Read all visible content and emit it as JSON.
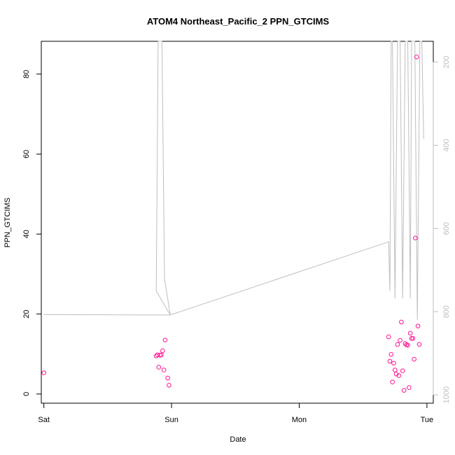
{
  "chart_data": {
    "type": "scatter",
    "title": "ATOM4 Northeast_Pacific_2 PPN_GTCIMS",
    "xlabel": "Date",
    "ylabel": "PPN_GTCIMS",
    "x_ticks": [
      "Sat",
      "Sun",
      "Mon",
      "Tue"
    ],
    "xlim": [
      -0.02,
      3.05
    ],
    "ylim": [
      -2.3,
      88.2
    ],
    "y_ticks": [
      0,
      20,
      40,
      60,
      80
    ],
    "right_axis": {
      "ylim": [
        1020,
        150
      ],
      "ticks": [
        200,
        400,
        600,
        800,
        1000
      ],
      "color": "#bebebe"
    },
    "grid": false,
    "series": [
      {
        "type": "line",
        "axis": "right",
        "color": "#bebebe",
        "x": [
          0.0,
          0.99,
          0.88,
          0.895,
          0.91,
          0.925,
          0.945,
          0.99,
          2.7,
          2.71,
          2.72,
          2.73,
          2.75,
          2.77,
          2.79,
          2.81,
          2.83,
          2.85,
          2.87,
          2.88,
          2.89,
          2.905,
          2.925,
          2.945,
          2.96,
          2.975
        ],
        "y": [
          807,
          808,
          750,
          150,
          150,
          150,
          720,
          808,
          632,
          750,
          150,
          150,
          768,
          150,
          150,
          768,
          150,
          150,
          768,
          150,
          150,
          150,
          820,
          150,
          150,
          385
        ]
      },
      {
        "type": "scatter",
        "axis": "left",
        "color": "#ff1493",
        "x": [
          0.0,
          0.88,
          0.89,
          0.9,
          0.91,
          0.92,
          0.93,
          0.94,
          0.95,
          0.97,
          0.98,
          2.7,
          2.71,
          2.72,
          2.73,
          2.74,
          2.75,
          2.76,
          2.77,
          2.78,
          2.79,
          2.8,
          2.81,
          2.82,
          2.83,
          2.84,
          2.85,
          2.86,
          2.87,
          2.88,
          2.89,
          2.9,
          2.91,
          2.92,
          2.93,
          2.94
        ],
        "y": [
          5.3,
          9.5,
          9.8,
          6.7,
          9.7,
          9.8,
          10.8,
          6.0,
          13.5,
          4.0,
          2.2,
          14.3,
          8.2,
          9.9,
          3.0,
          7.7,
          6.0,
          5.0,
          12.4,
          4.6,
          13.4,
          18.0,
          5.8,
          0.9,
          12.6,
          12.3,
          12.2,
          1.6,
          15.2,
          13.9,
          13.9,
          8.7,
          39.0,
          84.3,
          17.0,
          12.4
        ]
      }
    ]
  }
}
